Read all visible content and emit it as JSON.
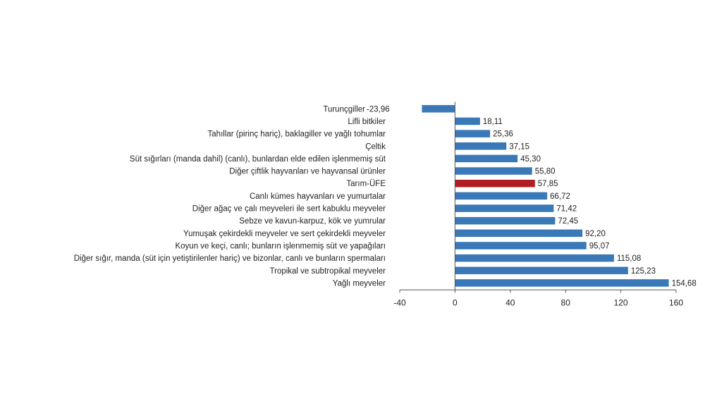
{
  "chart_data": {
    "type": "bar",
    "orientation": "horizontal",
    "title": "",
    "xlabel": "",
    "ylabel": "",
    "xlim": [
      -40,
      160
    ],
    "ticks": [
      -40,
      0,
      40,
      80,
      120,
      160
    ],
    "grid": false,
    "legend": "none",
    "colors": {
      "default": "#3a78b8",
      "highlight": "#b01e24"
    },
    "categories": [
      "Turunçgiller",
      "Lifli bitkiler",
      "Tahıllar (pirinç hariç), baklagiller ve yağlı tohumlar",
      "Çeltik",
      "Süt sığırları (manda dahil) (canlı), bunlardan elde edilen işlenmemiş süt",
      "Diğer çiftlik hayvanları ve hayvansal ürünler",
      "Tarım-ÜFE",
      "Canlı kümes hayvanları ve yumurtalar",
      "Diğer ağaç ve çalı meyveleri ile sert kabuklu meyveler",
      "Sebze ve kavun-karpuz, kök ve yumrular",
      "Yumuşak çekirdekli meyveler ve sert çekirdekli meyveler",
      "Koyun ve keçi, canlı; bunların işlenmemiş süt ve yapağıları",
      "Diğer sığır, manda (süt için yetiştirilenler hariç) ve bizonlar, canlı ve bunların spermaları",
      "Tropikal ve subtropikal meyveler",
      "Yağlı meyveler"
    ],
    "values": [
      -23.96,
      18.11,
      25.36,
      37.15,
      45.3,
      55.8,
      57.85,
      66.72,
      71.42,
      72.45,
      92.2,
      95.07,
      115.08,
      125.23,
      154.68
    ],
    "value_labels": [
      "-23,96",
      "18,11",
      "25,36",
      "37,15",
      "45,30",
      "55,80",
      "57,85",
      "66,72",
      "71,42",
      "72,45",
      "92,20",
      "95,07",
      "115,08",
      "125,23",
      "154,68"
    ],
    "tick_labels": [
      "-40",
      "0",
      "40",
      "80",
      "120",
      "160"
    ],
    "highlight_index": 6
  }
}
